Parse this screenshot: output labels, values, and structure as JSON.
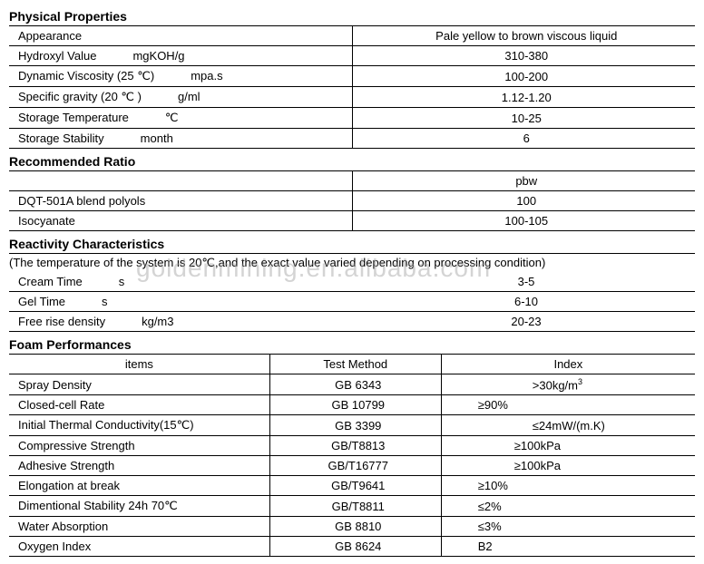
{
  "watermark": "goldenmining.en.alibaba.com",
  "sections": {
    "physical": {
      "title": "Physical Properties",
      "rows": [
        {
          "label": "Appearance",
          "unit": "",
          "value": "Pale yellow to brown viscous liquid"
        },
        {
          "label": "Hydroxyl Value",
          "unit": "mgKOH/g",
          "value": "310-380"
        },
        {
          "label": "Dynamic Viscosity (25 ℃)",
          "unit": "mpa.s",
          "value": "100-200"
        },
        {
          "label": "Specific gravity (20 ℃ )",
          "unit": "g/ml",
          "value": "1.12-1.20"
        },
        {
          "label": "Storage Temperature",
          "unit": "℃",
          "value": "10-25"
        },
        {
          "label": "Storage Stability",
          "unit": "month",
          "value": "6"
        }
      ]
    },
    "ratio": {
      "title": "Recommended Ratio",
      "header": "pbw",
      "rows": [
        {
          "label": "DQT-501A blend polyols",
          "value": "100"
        },
        {
          "label": "Isocyanate",
          "value": "100-105"
        }
      ]
    },
    "reactivity": {
      "title": "Reactivity Characteristics",
      "subtitle": "(The temperature of the system is 20℃,and the exact value varied depending on processing condition)",
      "rows": [
        {
          "label": "Cream Time",
          "unit": "s",
          "value": "3-5"
        },
        {
          "label": "Gel Time",
          "unit": "s",
          "value": "6-10"
        },
        {
          "label": "Free rise density",
          "unit": "kg/m3",
          "value": "20-23"
        }
      ]
    },
    "foam": {
      "title": "Foam Performances",
      "headers": {
        "items": "items",
        "method": "Test Method",
        "index": "Index"
      },
      "rows": [
        {
          "item": "Spray Density",
          "method": "GB 6343",
          "index": ">30kg/m",
          "sup": "3",
          "indexpad": "100px"
        },
        {
          "item": "Closed-cell Rate",
          "method": "GB 10799",
          "index": "≥90%"
        },
        {
          "item": "Initial Thermal Conductivity(15℃)",
          "method": "GB 3399",
          "index": "≤24mW/(m.K)",
          "indexpad": "100px"
        },
        {
          "item": "Compressive Strength",
          "method": "GB/T8813",
          "index": "≥100kPa",
          "indexpad": "80px"
        },
        {
          "item": "Adhesive Strength",
          "method": "GB/T16777",
          "index": "≥100kPa",
          "indexpad": "80px"
        },
        {
          "item": "Elongation at break",
          "method": "GB/T9641",
          "index": "≥10%"
        },
        {
          "item": "Dimentional Stability  24h   70℃",
          "method": "GB/T8811",
          "index": "≤2%"
        },
        {
          "item": "Water Absorption",
          "method": "GB 8810",
          "index": "≤3%"
        },
        {
          "item": "Oxygen Index",
          "method": "GB 8624",
          "index": "B2"
        }
      ]
    }
  }
}
